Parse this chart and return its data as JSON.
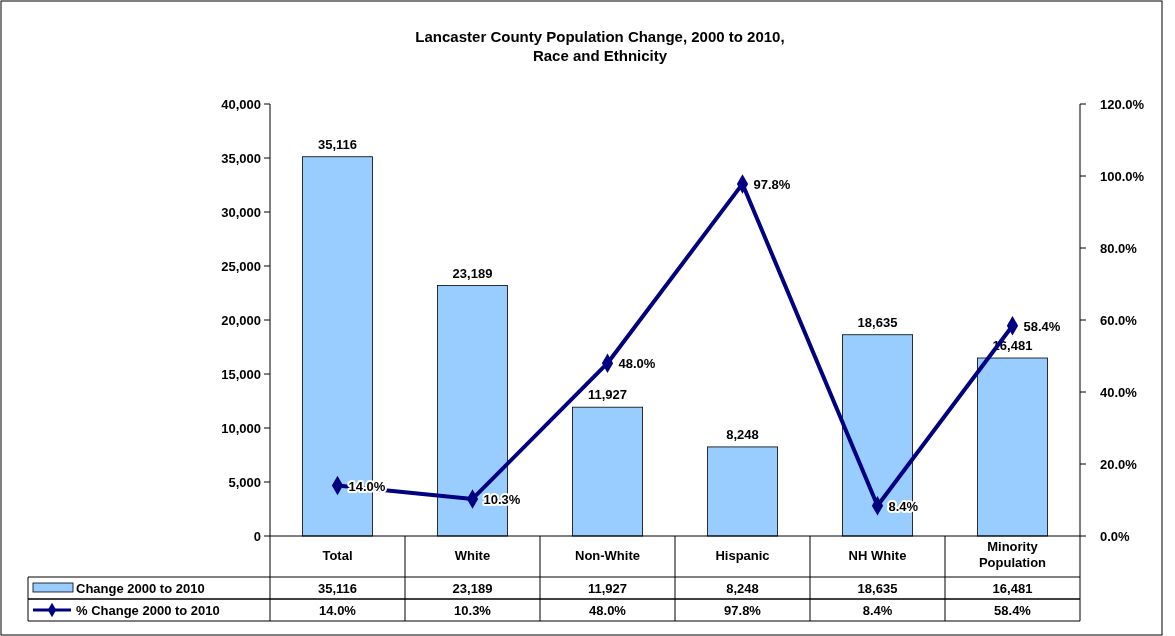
{
  "chart_data": {
    "type": "bar",
    "title": "Lancaster County Population Change, 2000 to 2010,\nRace and Ethnicity",
    "categories": [
      "Total",
      "White",
      "Non-White",
      "Hispanic",
      "NH White",
      "Minority\nPopulation"
    ],
    "series": [
      {
        "name": "Change 2000 to 2010",
        "color": "#99ccff",
        "values": [
          35116,
          23189,
          11927,
          8248,
          18635,
          16481
        ],
        "value_labels": [
          "35,116",
          "23,189",
          "11,927",
          "8,248",
          "18,635",
          "16,481"
        ]
      },
      {
        "name": "% Change 2000 to 2010",
        "type": "line",
        "axis": "y2",
        "color": "#000080",
        "values": [
          14.0,
          10.3,
          48.0,
          97.8,
          8.4,
          58.4
        ],
        "value_labels": [
          "14.0%",
          "10.3%",
          "48.0%",
          "97.8%",
          "8.4%",
          "58.4%"
        ]
      }
    ],
    "ylim": [
      0,
      40000
    ],
    "yticks": [
      0,
      {
        "value": 5000,
        "label": "5,000"
      },
      {
        "value": 10000,
        "label": "10,000"
      },
      {
        "value": 15000,
        "label": "15,000"
      },
      {
        "value": 20000,
        "label": "20,000"
      },
      {
        "value": 25000,
        "label": "25,000"
      },
      {
        "value": 30000,
        "label": "30,000"
      },
      {
        "value": 35000,
        "label": "35,000"
      },
      {
        "value": 40000,
        "label": "40,000"
      }
    ],
    "y2lim": [
      0,
      120
    ],
    "y2ticks": [
      {
        "value": 0,
        "label": "0.0%"
      },
      {
        "value": 20,
        "label": "20.0%"
      },
      {
        "value": 40,
        "label": "40.0%"
      },
      {
        "value": 60,
        "label": "60.0%"
      },
      {
        "value": 80,
        "label": "80.0%"
      },
      {
        "value": 100,
        "label": "100.0%"
      },
      {
        "value": 120,
        "label": "120.0%"
      }
    ],
    "marker": "diamond",
    "legend": "bottom",
    "grid": false
  }
}
